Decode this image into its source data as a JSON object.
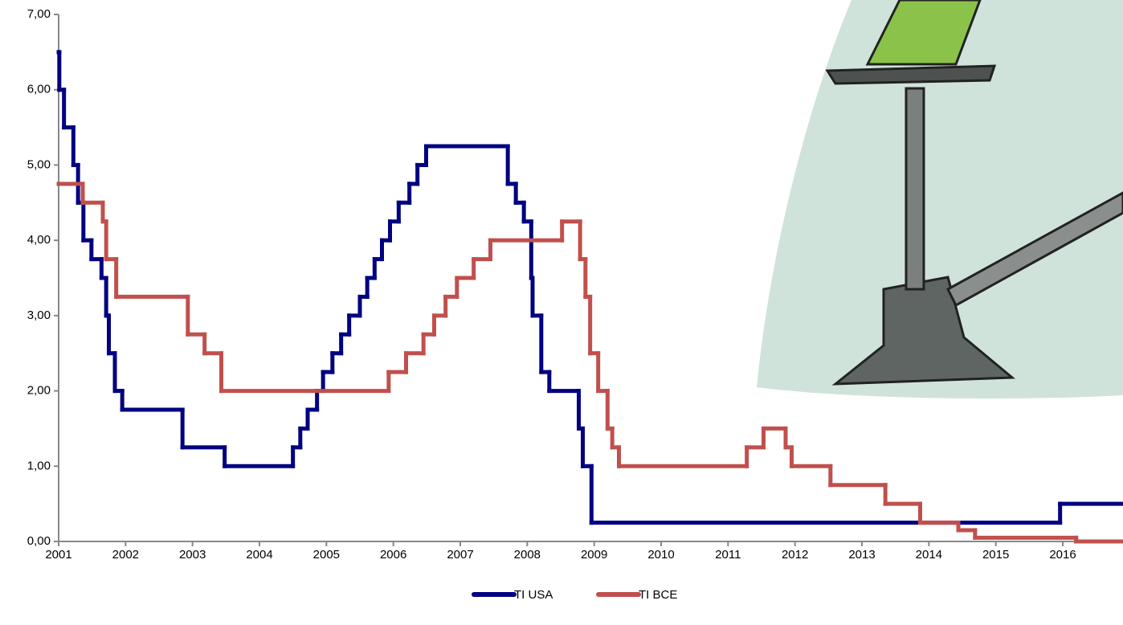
{
  "chart_data": {
    "type": "step",
    "xlim": [
      2001,
      2016.9
    ],
    "xticks": [
      2001,
      2002,
      2003,
      2004,
      2005,
      2006,
      2007,
      2008,
      2009,
      2010,
      2011,
      2012,
      2013,
      2014,
      2015,
      2016
    ],
    "ylim": [
      0,
      7
    ],
    "yticks": [
      {
        "value": 0,
        "label": "0,00"
      },
      {
        "value": 1,
        "label": "1,00"
      },
      {
        "value": 2,
        "label": "2,00"
      },
      {
        "value": 3,
        "label": "3,00"
      },
      {
        "value": 4,
        "label": "4,00"
      },
      {
        "value": 5,
        "label": "5,00"
      },
      {
        "value": 6,
        "label": "6,00"
      },
      {
        "value": 7,
        "label": "7,00"
      }
    ],
    "series": [
      {
        "name": "TI USA",
        "color": "#000080",
        "x": [
          2001.0,
          2001.01,
          2001.08,
          2001.22,
          2001.29,
          2001.37,
          2001.49,
          2001.64,
          2001.71,
          2001.75,
          2001.84,
          2001.95,
          2002.85,
          2003.48,
          2004.5,
          2004.61,
          2004.72,
          2004.86,
          2004.95,
          2005.09,
          2005.22,
          2005.34,
          2005.5,
          2005.61,
          2005.72,
          2005.83,
          2005.95,
          2006.08,
          2006.24,
          2006.36,
          2006.49,
          2007.71,
          2007.83,
          2007.95,
          2008.06,
          2008.08,
          2008.21,
          2008.33,
          2008.77,
          2008.83,
          2008.96,
          2015.96
        ],
        "values": [
          6.5,
          6.0,
          5.5,
          5.0,
          4.5,
          4.0,
          3.75,
          3.5,
          3.0,
          2.5,
          2.0,
          1.75,
          1.25,
          1.0,
          1.25,
          1.5,
          1.75,
          2.0,
          2.25,
          2.5,
          2.75,
          3.0,
          3.25,
          3.5,
          3.75,
          4.0,
          4.25,
          4.5,
          4.75,
          5.0,
          5.25,
          4.75,
          4.5,
          4.25,
          3.5,
          3.0,
          2.25,
          2.0,
          1.5,
          1.0,
          0.25,
          0.5
        ]
      },
      {
        "name": "TI BCE",
        "color": "#c0504d",
        "x": [
          2001.0,
          2001.36,
          2001.66,
          2001.71,
          2001.86,
          2002.93,
          2003.18,
          2003.43,
          2005.93,
          2006.19,
          2006.45,
          2006.61,
          2006.78,
          2006.95,
          2007.2,
          2007.45,
          2008.52,
          2008.79,
          2008.87,
          2008.94,
          2009.06,
          2009.2,
          2009.27,
          2009.37,
          2011.28,
          2011.53,
          2011.86,
          2011.95,
          2012.53,
          2013.35,
          2013.87,
          2014.44,
          2014.69,
          2016.2
        ],
        "values": [
          4.75,
          4.5,
          4.25,
          3.75,
          3.25,
          2.75,
          2.5,
          2.0,
          2.25,
          2.5,
          2.75,
          3.0,
          3.25,
          3.5,
          3.75,
          4.0,
          4.25,
          3.75,
          3.25,
          2.5,
          2.0,
          1.5,
          1.25,
          1.0,
          1.25,
          1.5,
          1.25,
          1.0,
          0.75,
          0.5,
          0.25,
          0.15,
          0.05,
          0.0
        ]
      }
    ]
  }
}
